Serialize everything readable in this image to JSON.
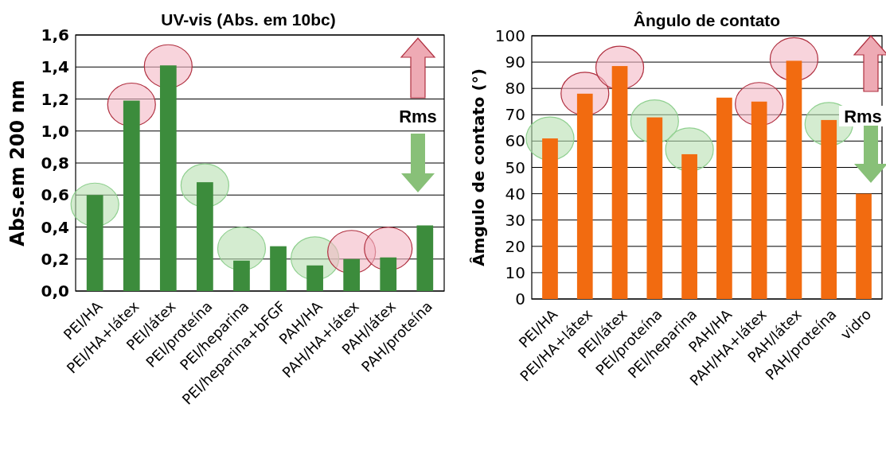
{
  "chart_data": [
    {
      "type": "bar",
      "title": "UV-vis (Abs. em 10bc)",
      "ylabel": "Abs.em 200 nm",
      "categories": [
        "PEI/HA",
        "PEI/HA+látex",
        "PEI/látex",
        "PEI/proteína",
        "PEI/heparina",
        "PEI/heparina+bFGF",
        "PAH/HA",
        "PAH/HA+látex",
        "PAH/látex",
        "PAH/proteína"
      ],
      "values": [
        0.6,
        1.19,
        1.41,
        0.68,
        0.19,
        0.28,
        0.16,
        0.2,
        0.21,
        0.41
      ],
      "color": "#3c8c3c",
      "ylim": [
        0,
        1.6
      ],
      "yticks": [
        {
          "value": 0,
          "label": "0,0"
        },
        {
          "value": 0.2,
          "label": "0,2"
        },
        {
          "value": 0.4,
          "label": "0,4"
        },
        {
          "value": 0.6,
          "label": "0,6"
        },
        {
          "value": 0.8,
          "label": "0,8"
        },
        {
          "value": 1.0,
          "label": "1,0"
        },
        {
          "value": 1.2,
          "label": "1,2"
        },
        {
          "value": 1.4,
          "label": "1,4"
        },
        {
          "value": 1.6,
          "label": "1,6"
        }
      ],
      "grid": "y",
      "annotations": [
        "Rms"
      ]
    },
    {
      "type": "bar",
      "title": "Ângulo de contato",
      "ylabel": "Âmgulo de contato (°)",
      "categories": [
        "PEI/HA",
        "PEI/HA+látex",
        "PEI/látex",
        "PEI/proteína",
        "PEI/heparina",
        "PAH/HA",
        "PAH/HA+látex",
        "PAH/látex",
        "PAH/proteína",
        "vidro"
      ],
      "values": [
        61,
        78,
        88.5,
        69,
        55,
        76.5,
        75,
        90.5,
        68,
        40
      ],
      "color": "#f26b10",
      "ylim": [
        0,
        100
      ],
      "yticks": [
        0,
        10,
        20,
        30,
        40,
        50,
        60,
        70,
        80,
        90,
        100
      ],
      "grid": "y",
      "annotations": [
        "Rms"
      ]
    }
  ]
}
